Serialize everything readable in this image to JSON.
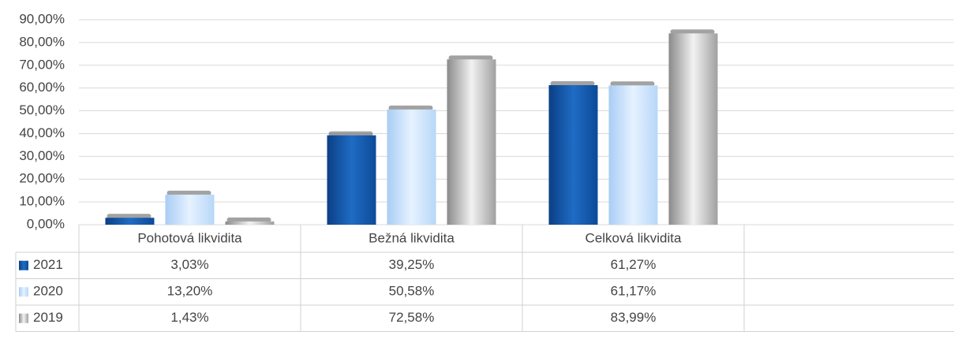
{
  "chart_data": {
    "type": "bar",
    "categories": [
      "Pohotová likvidita",
      "Bežná likvidita",
      "Celková likvidita",
      null
    ],
    "series": [
      {
        "name": "2021",
        "color": "#1a5cad",
        "values": [
          3.03,
          39.25,
          61.27,
          null
        ],
        "value_labels": [
          "3,03%",
          "39,25%",
          "61,27%",
          null
        ]
      },
      {
        "name": "2020",
        "color": "#c6e0fb",
        "values": [
          13.2,
          50.58,
          61.17,
          null
        ],
        "value_labels": [
          "13,20%",
          "50,58%",
          "61,17%",
          null
        ]
      },
      {
        "name": "2019",
        "color": "#bdbdbd",
        "values": [
          1.43,
          72.58,
          83.99,
          null
        ],
        "value_labels": [
          "1,43%",
          "72,58%",
          "83,99%",
          null
        ]
      }
    ],
    "ylim": [
      0,
      90
    ],
    "yticks": [
      {
        "value": 0,
        "label": "0,00%"
      },
      {
        "value": 10,
        "label": "10,00%"
      },
      {
        "value": 20,
        "label": "20,00%"
      },
      {
        "value": 30,
        "label": "30,00%"
      },
      {
        "value": 40,
        "label": "40,00%"
      },
      {
        "value": 50,
        "label": "50,00%"
      },
      {
        "value": 60,
        "label": "60,00%"
      },
      {
        "value": 70,
        "label": "70,00%"
      },
      {
        "value": 80,
        "label": "80,00%"
      },
      {
        "value": 90,
        "label": "90,00%"
      }
    ],
    "grid": true,
    "legend": "table"
  }
}
